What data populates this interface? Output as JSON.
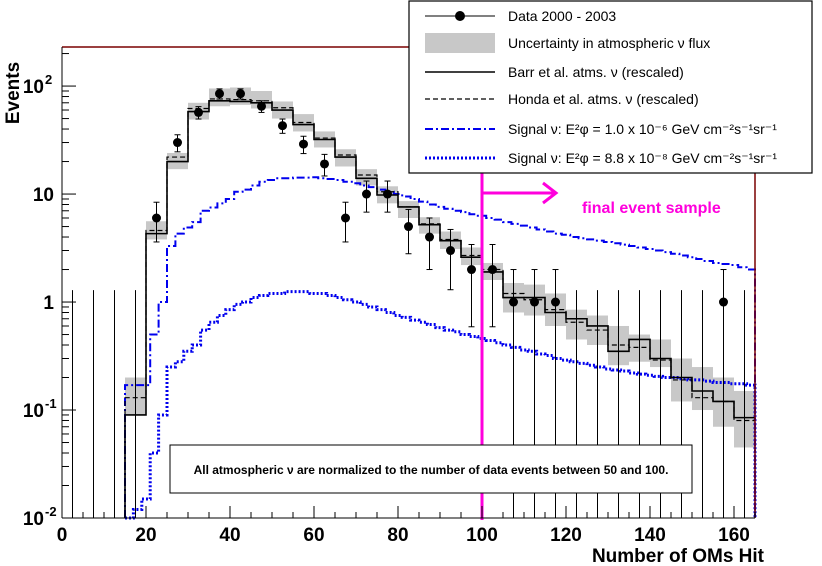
{
  "chart_data": {
    "type": "line",
    "xlabel": "Number of OMs Hit",
    "ylabel": "Events",
    "xlim": [
      0,
      165
    ],
    "ylim": [
      0.01,
      230
    ],
    "yscale": "log",
    "x_ticks": [
      0,
      20,
      40,
      60,
      80,
      100,
      120,
      140,
      160
    ],
    "y_ticks": [
      {
        "value": 0.01,
        "label": "10",
        "sup": "-2"
      },
      {
        "value": 0.1,
        "label": "10",
        "sup": "-1"
      },
      {
        "value": 1,
        "label": "1",
        "sup": ""
      },
      {
        "value": 10,
        "label": "10",
        "sup": ""
      },
      {
        "value": 100,
        "label": "10",
        "sup": "2"
      }
    ],
    "bin_edges": [
      15,
      20,
      25,
      30,
      35,
      40,
      45,
      50,
      55,
      60,
      65,
      70,
      75,
      80,
      85,
      90,
      95,
      100,
      105,
      110,
      115,
      120,
      125,
      130,
      135,
      140,
      145,
      150,
      155,
      160,
      165
    ],
    "series": [
      {
        "name": "Data 2000 - 2003",
        "kind": "points",
        "x": [
          22.5,
          27.5,
          32.5,
          37.5,
          42.5,
          47.5,
          52.5,
          57.5,
          62.5,
          67.5,
          72.5,
          77.5,
          82.5,
          87.5,
          92.5,
          97.5,
          102.5,
          107.5,
          112.5,
          117.5,
          157.5
        ],
        "y": [
          6,
          30,
          57,
          85,
          85,
          65,
          43,
          29,
          19,
          6,
          10,
          10,
          5,
          4,
          3,
          2,
          2,
          1,
          1,
          1,
          1
        ],
        "err_low": [
          2.4,
          5.4,
          7.5,
          9.2,
          9.2,
          8,
          6.5,
          5.3,
          4.3,
          2.4,
          3.2,
          3.2,
          2.2,
          2,
          1.7,
          1.41,
          1.41,
          1,
          1,
          1,
          1
        ],
        "err_high": [
          2.4,
          5.4,
          7.5,
          9.2,
          9.2,
          8,
          6.5,
          5.3,
          4.3,
          2.4,
          3.2,
          3.2,
          2.2,
          2,
          1.7,
          1.41,
          1.41,
          1,
          1,
          1,
          1
        ],
        "upper_limit_x": [
          2.5,
          7.5,
          12.5,
          17.5,
          122.5,
          127.5,
          132.5,
          137.5,
          142.5,
          147.5,
          152.5,
          162.5
        ],
        "upper_limit_value": 1.29
      },
      {
        "name": "Uncertainty in atmospheric ν flux",
        "kind": "band",
        "low": [
          0.09,
          3.8,
          17,
          49,
          65,
          67,
          62,
          50,
          38,
          27,
          18,
          12,
          8.2,
          6,
          4.3,
          3.1,
          2.2,
          1.6,
          0.8,
          0.75,
          0.6,
          0.45,
          0.4,
          0.26,
          0.28,
          0.25,
          0.12,
          0.1,
          0.07,
          0.045,
          0.055
        ],
        "high": [
          0.2,
          5.6,
          24,
          70,
          95,
          97,
          90,
          72,
          55,
          38,
          26,
          17,
          11.8,
          8.6,
          6.1,
          4.5,
          3.2,
          2.3,
          1.5,
          1.45,
          1.2,
          0.85,
          0.75,
          0.6,
          0.5,
          0.45,
          0.3,
          0.25,
          0.2,
          0.15,
          0.13
        ]
      },
      {
        "name": "Barr et al. atms. ν (rescaled)",
        "kind": "step",
        "values": [
          0.09,
          4.3,
          20,
          58,
          73,
          72,
          70,
          60,
          44,
          32,
          22,
          14,
          9.8,
          7.6,
          5.2,
          3.7,
          2.6,
          1.9,
          1.1,
          1.1,
          0.8,
          0.7,
          0.6,
          0.35,
          0.45,
          0.3,
          0.2,
          0.15,
          0.12,
          0.085,
          0.085
        ]
      },
      {
        "name": "Honda et al. atms. ν (rescaled)",
        "kind": "step",
        "values": [
          0.13,
          4.6,
          22,
          62,
          76,
          75,
          73,
          63,
          46,
          33,
          23,
          15,
          10.5,
          7.6,
          5.3,
          3.8,
          2.7,
          2,
          1.2,
          1.05,
          0.85,
          0.65,
          0.55,
          0.4,
          0.38,
          0.29,
          0.19,
          0.13,
          0.12,
          0.08,
          0.08
        ]
      },
      {
        "name": "Signal ν: E²φ = 1.0 x 10⁻⁶ GeV cm⁻²s⁻¹sr⁻¹",
        "kind": "step",
        "edges": [
          15,
          17,
          19,
          21,
          23,
          25,
          27,
          29,
          31,
          33,
          35,
          37,
          39,
          41,
          43,
          45,
          47,
          49,
          51,
          53,
          55,
          57,
          59,
          61,
          63,
          65,
          67,
          69,
          71,
          73,
          75,
          77,
          79,
          81,
          83,
          85,
          87,
          89,
          91,
          93,
          95,
          97,
          99,
          101,
          103,
          105,
          107,
          109,
          111,
          113,
          115,
          117,
          119,
          121,
          123,
          125,
          127,
          129,
          131,
          133,
          135,
          137,
          139,
          141,
          143,
          145,
          147,
          149,
          151,
          153,
          155,
          157,
          159,
          161,
          163,
          165
        ],
        "values": [
          0.17,
          0.17,
          0.17,
          0.5,
          1,
          3.3,
          4.3,
          4.9,
          5.5,
          7,
          7.5,
          8.2,
          9,
          10.5,
          11,
          12,
          13,
          13.5,
          14,
          14,
          14.2,
          14.2,
          14.3,
          14,
          13.8,
          13.5,
          13,
          12.6,
          12,
          11.6,
          11,
          10.5,
          10,
          9.5,
          9,
          8.5,
          8,
          7.6,
          7.3,
          7,
          6.8,
          6.5,
          6.3,
          6,
          5.8,
          5.5,
          5.3,
          5.1,
          4.9,
          4.7,
          4.5,
          4.3,
          4.2,
          4,
          3.9,
          3.8,
          3.7,
          3.6,
          3.5,
          3.4,
          3.3,
          3.2,
          3.1,
          3,
          2.9,
          2.8,
          2.7,
          2.6,
          2.5,
          2.4,
          2.3,
          2.25,
          2.2,
          2.1,
          2
        ]
      },
      {
        "name": "Signal ν: E²φ = 8.8 x 10⁻⁸ GeV cm⁻²s⁻¹sr⁻¹",
        "kind": "step",
        "edges": [
          15,
          17,
          19,
          21,
          23,
          25,
          27,
          29,
          31,
          33,
          35,
          37,
          39,
          41,
          43,
          45,
          47,
          49,
          51,
          53,
          55,
          57,
          59,
          61,
          63,
          65,
          67,
          69,
          71,
          73,
          75,
          77,
          79,
          81,
          83,
          85,
          87,
          89,
          91,
          93,
          95,
          97,
          99,
          101,
          103,
          105,
          107,
          109,
          111,
          113,
          115,
          117,
          119,
          121,
          123,
          125,
          127,
          129,
          131,
          133,
          135,
          137,
          139,
          141,
          143,
          145,
          147,
          149,
          151,
          153,
          155,
          157,
          159,
          161,
          163,
          165
        ],
        "values": [
          0.01,
          0.012,
          0.015,
          0.04,
          0.09,
          0.25,
          0.28,
          0.35,
          0.4,
          0.55,
          0.65,
          0.75,
          0.85,
          0.95,
          1,
          1.1,
          1.15,
          1.2,
          1.2,
          1.25,
          1.25,
          1.25,
          1.2,
          1.2,
          1.15,
          1.1,
          1.05,
          1,
          0.95,
          0.9,
          0.85,
          0.8,
          0.75,
          0.72,
          0.68,
          0.65,
          0.62,
          0.58,
          0.55,
          0.53,
          0.5,
          0.48,
          0.46,
          0.44,
          0.42,
          0.4,
          0.38,
          0.36,
          0.35,
          0.33,
          0.32,
          0.3,
          0.29,
          0.28,
          0.27,
          0.26,
          0.25,
          0.24,
          0.235,
          0.23,
          0.22,
          0.215,
          0.21,
          0.205,
          0.2,
          0.2,
          0.195,
          0.19,
          0.19,
          0.185,
          0.18,
          0.18,
          0.175,
          0.175,
          0.17
        ]
      }
    ],
    "cut_x": 100,
    "cut_label": "final event sample",
    "legend": [
      "Data 2000 - 2003",
      "Uncertainty in atmospheric ν flux",
      "Barr et al. atms. ν (rescaled)",
      "Honda et al. atms. ν (rescaled)",
      "Signal ν: E²φ = 1.0 x 10⁻⁶ GeV cm⁻²s⁻¹sr⁻¹",
      "Signal ν: E²φ = 8.8 x 10⁻⁸ GeV cm⁻²s⁻¹sr⁻¹"
    ],
    "legend_position": "top-right",
    "note": "All atmospheric ν are normalized to the number of data events between 50 and 100.",
    "colors": {
      "data": "#000000",
      "band": "#c8c8c8",
      "signal": "#0000ee",
      "cut": "#ff00dd",
      "frame": "#7a0000"
    }
  }
}
